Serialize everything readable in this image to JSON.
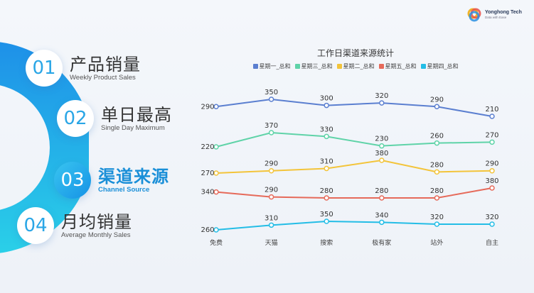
{
  "logo": {
    "name": "Yonghong Tech",
    "slogan": "Data with Ease"
  },
  "menu": [
    {
      "num": "01",
      "title": "产品销量",
      "subtitle": "Weekly Product Sales"
    },
    {
      "num": "02",
      "title": "单日最高",
      "subtitle": "Single Day Maximum"
    },
    {
      "num": "03",
      "title": "渠道来源",
      "subtitle": "Channel Source"
    },
    {
      "num": "04",
      "title": "月均销量",
      "subtitle": "Average Monthly Sales"
    }
  ],
  "colors": {
    "accent": "#1a8fd8",
    "series": [
      "#5b7fd0",
      "#5fd3a8",
      "#f3c43a",
      "#e66a5a",
      "#24bde6"
    ]
  },
  "chart_data": {
    "type": "line",
    "title": "工作日渠道来源统计",
    "categories": [
      "免费",
      "天猫",
      "搜索",
      "极有家",
      "站外",
      "自主"
    ],
    "series": [
      {
        "name": "星期一_总和",
        "values": [
          290,
          350,
          300,
          320,
          290,
          210
        ]
      },
      {
        "name": "星期三_总和",
        "values": [
          220,
          370,
          330,
          230,
          260,
          270
        ]
      },
      {
        "name": "星期二_总和",
        "values": [
          270,
          290,
          310,
          380,
          280,
          290
        ]
      },
      {
        "name": "星期五_总和",
        "values": [
          340,
          290,
          280,
          280,
          280,
          380
        ]
      },
      {
        "name": "星期四_总和",
        "values": [
          260,
          310,
          350,
          340,
          320,
          320
        ]
      }
    ],
    "legend_position": "top",
    "grid": false
  }
}
